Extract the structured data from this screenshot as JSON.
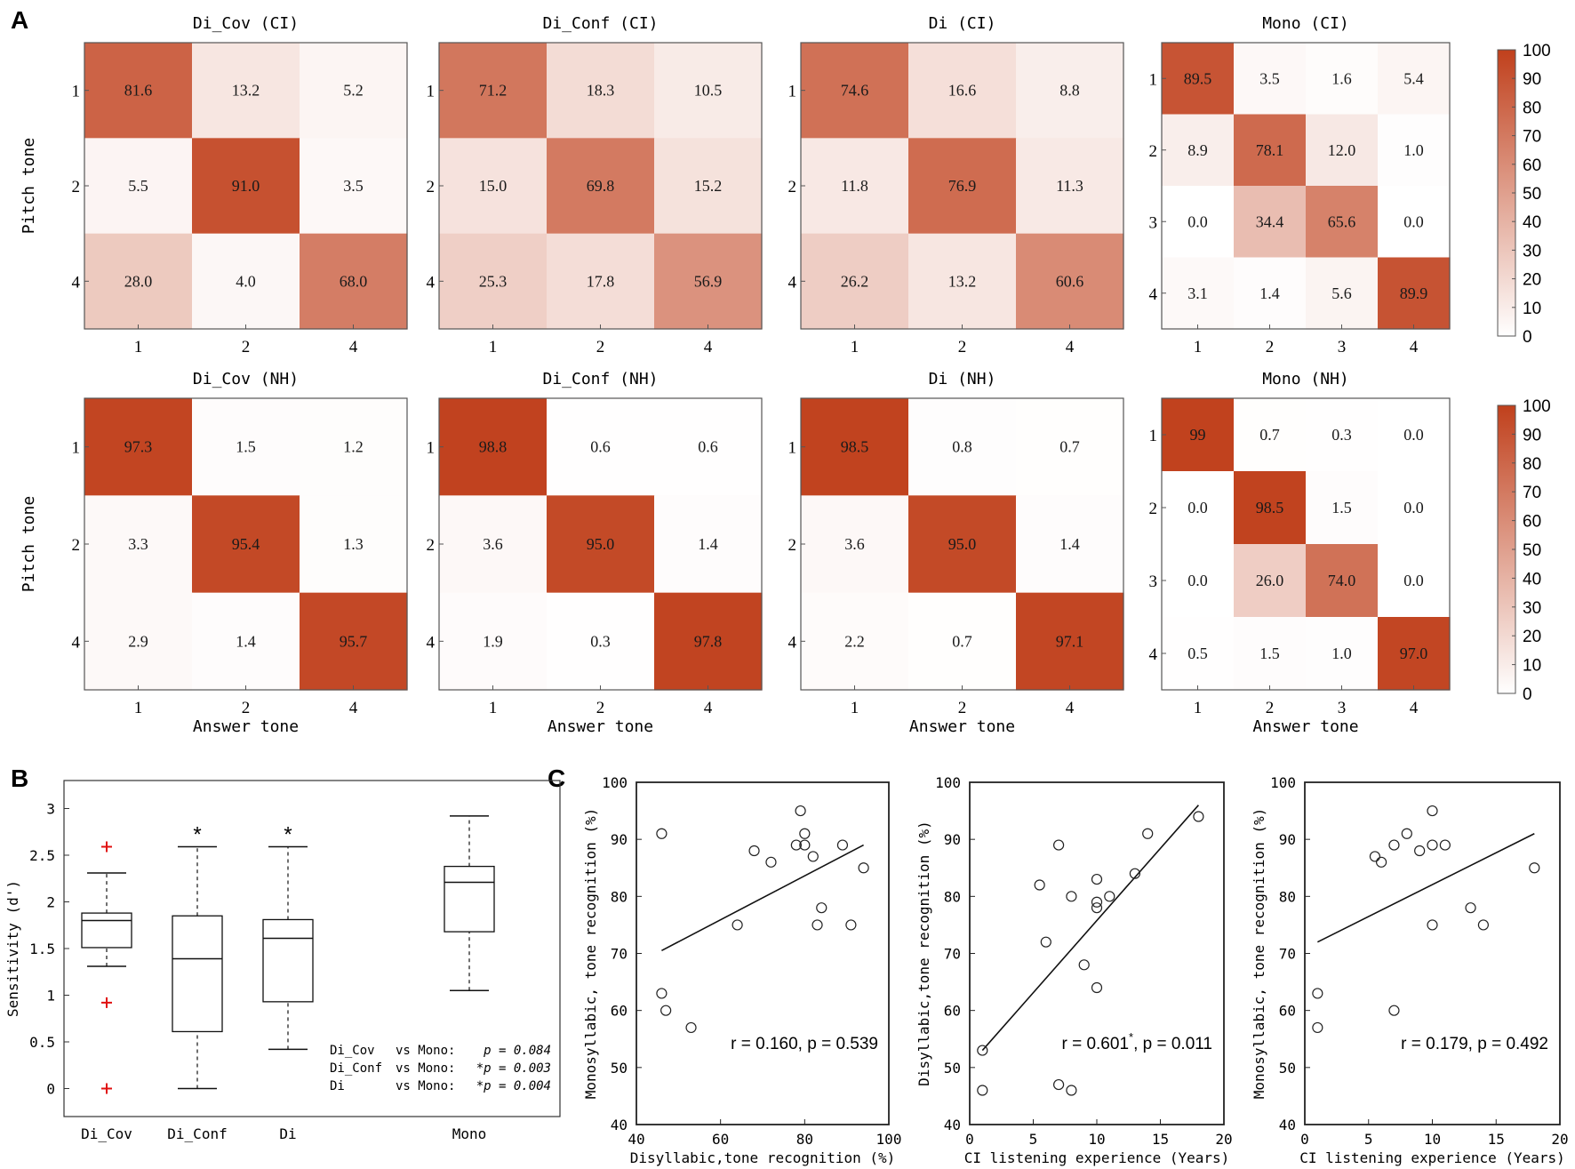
{
  "panel_labels": {
    "a": "A",
    "b": "B",
    "c": "C"
  },
  "confusion_common": {
    "ylabel": "Pitch tone",
    "xlabel": "Answer tone"
  },
  "colorbar": {
    "ticks": [
      "0",
      "10",
      "20",
      "30",
      "40",
      "50",
      "60",
      "70",
      "80",
      "90",
      "100"
    ],
    "low_color": "#ffffff",
    "high_color": "#c0401c"
  },
  "confusion": [
    {
      "title": "Di_Cov (CI)",
      "labels": [
        "1",
        "2",
        "4"
      ],
      "values": [
        [
          "81.6",
          "13.2",
          "5.2"
        ],
        [
          "5.5",
          "91.0",
          "3.5"
        ],
        [
          "28.0",
          "4.0",
          "68.0"
        ]
      ]
    },
    {
      "title": "Di_Conf (CI)",
      "labels": [
        "1",
        "2",
        "4"
      ],
      "values": [
        [
          "71.2",
          "18.3",
          "10.5"
        ],
        [
          "15.0",
          "69.8",
          "15.2"
        ],
        [
          "25.3",
          "17.8",
          "56.9"
        ]
      ]
    },
    {
      "title": "Di (CI)",
      "labels": [
        "1",
        "2",
        "4"
      ],
      "values": [
        [
          "74.6",
          "16.6",
          "8.8"
        ],
        [
          "11.8",
          "76.9",
          "11.3"
        ],
        [
          "26.2",
          "13.2",
          "60.6"
        ]
      ]
    },
    {
      "title": "Mono (CI)",
      "labels": [
        "1",
        "2",
        "3",
        "4"
      ],
      "values": [
        [
          "89.5",
          "3.5",
          "1.6",
          "5.4"
        ],
        [
          "8.9",
          "78.1",
          "12.0",
          "1.0"
        ],
        [
          "0.0",
          "34.4",
          "65.6",
          "0.0"
        ],
        [
          "3.1",
          "1.4",
          "5.6",
          "89.9"
        ]
      ]
    },
    {
      "title": "Di_Cov (NH)",
      "labels": [
        "1",
        "2",
        "4"
      ],
      "values": [
        [
          "97.3",
          "1.5",
          "1.2"
        ],
        [
          "3.3",
          "95.4",
          "1.3"
        ],
        [
          "2.9",
          "1.4",
          "95.7"
        ]
      ]
    },
    {
      "title": "Di_Conf (NH)",
      "labels": [
        "1",
        "2",
        "4"
      ],
      "values": [
        [
          "98.8",
          "0.6",
          "0.6"
        ],
        [
          "3.6",
          "95.0",
          "1.4"
        ],
        [
          "1.9",
          "0.3",
          "97.8"
        ]
      ]
    },
    {
      "title": "Di (NH)",
      "labels": [
        "1",
        "2",
        "4"
      ],
      "values": [
        [
          "98.5",
          "0.8",
          "0.7"
        ],
        [
          "3.6",
          "95.0",
          "1.4"
        ],
        [
          "2.2",
          "0.7",
          "97.1"
        ]
      ]
    },
    {
      "title": "Mono (NH)",
      "labels": [
        "1",
        "2",
        "3",
        "4"
      ],
      "values": [
        [
          "99",
          "0.7",
          "0.3",
          "0.0"
        ],
        [
          "0.0",
          "98.5",
          "1.5",
          "0.0"
        ],
        [
          "0.0",
          "26.0",
          "74.0",
          "0.0"
        ],
        [
          "0.5",
          "1.5",
          "1.0",
          "97.0"
        ]
      ]
    }
  ],
  "boxplot": {
    "ylabel": "Sensitivity (d')",
    "yticks": [
      "0",
      "0.5",
      "1",
      "1.5",
      "2",
      "2.5",
      "3"
    ],
    "ylim": [
      -0.3,
      3.3
    ],
    "groups": [
      {
        "name": "Di_Cov",
        "whisker_low": 1.31,
        "q1": 1.51,
        "median": 1.8,
        "q3": 1.88,
        "whisker_high": 2.31,
        "outliers": [
          2.59,
          0.92,
          0.0
        ],
        "star": ""
      },
      {
        "name": "Di_Conf",
        "whisker_low": 0.0,
        "q1": 0.61,
        "median": 1.39,
        "q3": 1.85,
        "whisker_high": 2.59,
        "outliers": [],
        "star": "*"
      },
      {
        "name": "Di",
        "whisker_low": 0.42,
        "q1": 0.93,
        "median": 1.61,
        "q3": 1.81,
        "whisker_high": 2.59,
        "outliers": [],
        "star": "*"
      },
      {
        "name": "Mono",
        "whisker_low": 1.05,
        "q1": 1.68,
        "median": 2.21,
        "q3": 2.38,
        "whisker_high": 2.92,
        "outliers": [],
        "star": ""
      }
    ],
    "stats": [
      {
        "a": "Di_Cov",
        "b": "vs Mono:",
        "p": "p = 0.084"
      },
      {
        "a": "Di_Conf",
        "b": "vs Mono:",
        "p": "*p = 0.003"
      },
      {
        "a": "Di",
        "b": "vs Mono:",
        "p": "*p = 0.004"
      }
    ]
  },
  "chart_data": [
    {
      "type": "scatter",
      "xlabel": "Disyllabic,tone recognition   (%)",
      "ylabel": "Monosyllabic, tone recognition (%)",
      "xlim": [
        40,
        100
      ],
      "ylim": [
        40,
        100
      ],
      "xticks": [
        "40",
        "60",
        "80",
        "100"
      ],
      "yticks": [
        "40",
        "50",
        "60",
        "70",
        "80",
        "90",
        "100"
      ],
      "x": [
        46,
        46,
        47,
        53,
        64,
        68,
        72,
        78,
        79,
        80,
        80,
        82,
        83,
        84,
        89,
        91,
        94
      ],
      "y": [
        91,
        63,
        60,
        57,
        75,
        88,
        86,
        89,
        95,
        91,
        89,
        87,
        75,
        78,
        89,
        75,
        85
      ],
      "fit_line": {
        "x": [
          46,
          94
        ],
        "y": [
          70.5,
          89
        ]
      },
      "annotation": "r = 0.160, p = 0.539"
    },
    {
      "type": "scatter",
      "xlabel": "CI listening experience (Years)",
      "ylabel": "Disyllabic,tone recognition   (%)",
      "xlim": [
        0,
        20
      ],
      "ylim": [
        40,
        100
      ],
      "xticks": [
        "0",
        "5",
        "10",
        "15",
        "20"
      ],
      "yticks": [
        "40",
        "50",
        "60",
        "70",
        "80",
        "90",
        "100"
      ],
      "x": [
        1,
        1,
        5.5,
        6,
        7,
        7,
        8,
        8,
        9,
        10,
        10,
        10,
        10,
        11,
        13,
        14,
        18
      ],
      "y": [
        53,
        46,
        82,
        72,
        89,
        47,
        80,
        46,
        68,
        83,
        79,
        78,
        64,
        80,
        84,
        91,
        94
      ],
      "fit_line": {
        "x": [
          1,
          18
        ],
        "y": [
          53,
          96
        ]
      },
      "annotation": "r = 0.601",
      "annotation_sup": "*",
      "annotation_tail": ", p = 0.011"
    },
    {
      "type": "scatter",
      "xlabel": "CI listening experience (Years)",
      "ylabel": "Monosyllabic, tone recognition (%)",
      "xlim": [
        0,
        20
      ],
      "ylim": [
        40,
        100
      ],
      "xticks": [
        "0",
        "5",
        "10",
        "15",
        "20"
      ],
      "yticks": [
        "40",
        "50",
        "60",
        "70",
        "80",
        "90",
        "100"
      ],
      "x": [
        1,
        1,
        5.5,
        6,
        7,
        7,
        8,
        9,
        10,
        10,
        10,
        11,
        13,
        14,
        18
      ],
      "y": [
        63,
        57,
        87,
        86,
        89,
        60,
        91,
        88,
        95,
        89,
        75,
        89,
        78,
        75,
        85
      ],
      "fit_line": {
        "x": [
          1,
          18
        ],
        "y": [
          72,
          91
        ]
      },
      "annotation": "r = 0.179, p = 0.492"
    }
  ]
}
